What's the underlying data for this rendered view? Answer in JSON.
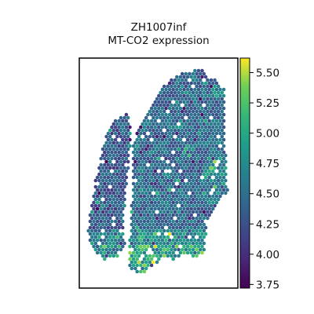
{
  "chart_data": {
    "type": "heatmap",
    "kind": "spatial spot plot (hexagonal spots colored by expression)",
    "title_line1": "ZH1007inf",
    "title_line2": "MT-CO2 expression",
    "colormap": "viridis",
    "color_range": [
      3.72,
      5.62
    ],
    "colorbar_ticks": [
      "3.75",
      "4.00",
      "4.25",
      "4.50",
      "4.75",
      "5.00",
      "5.25",
      "5.50"
    ],
    "colorbar_tick_values": [
      3.75,
      4.0,
      4.25,
      4.5,
      4.75,
      5.0,
      5.25,
      5.5
    ],
    "axes_visible": false,
    "grid": false
  }
}
